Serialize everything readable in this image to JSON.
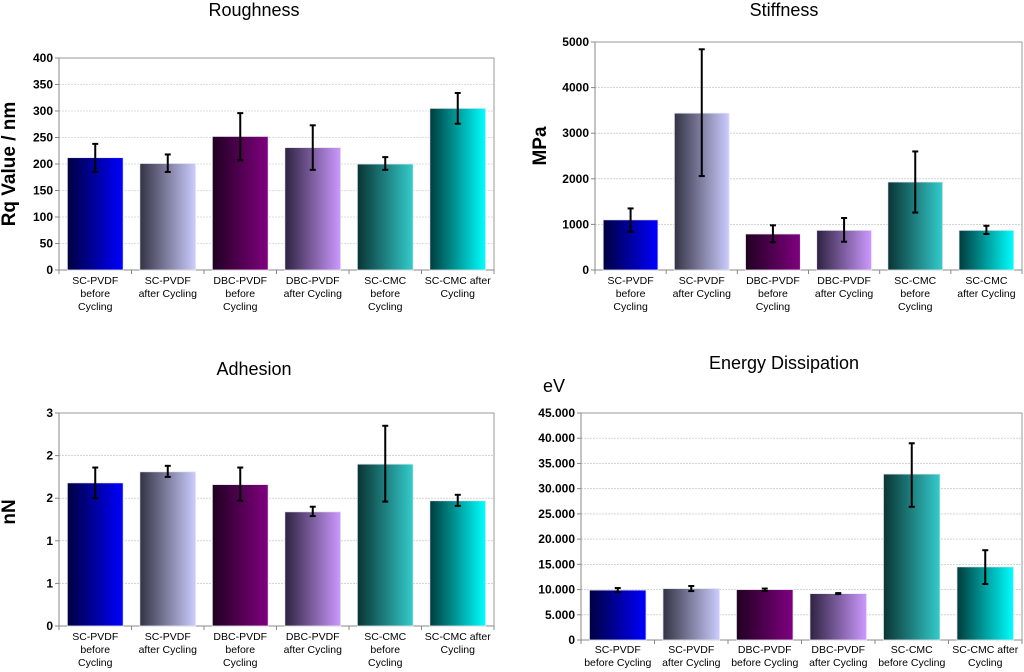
{
  "colors": [
    {
      "dark": "#000040",
      "light": "#0000FF"
    },
    {
      "dark": "#333344",
      "light": "#CCCCFF"
    },
    {
      "dark": "#200020",
      "light": "#800080"
    },
    {
      "dark": "#2E2240",
      "light": "#CC99FF"
    },
    {
      "dark": "#0A3333",
      "light": "#33CCCC"
    },
    {
      "dark": "#003C3C",
      "light": "#00FFFF"
    }
  ],
  "chart_data": [
    {
      "type": "bar",
      "title": "Roughness",
      "xlabel": "",
      "ylabel": "Rq Value / nm",
      "ylim": [
        0,
        400
      ],
      "yticks": [
        0,
        50,
        100,
        150,
        200,
        250,
        300,
        350,
        400
      ],
      "ytick_labels": [
        "0",
        "50",
        "100",
        "150",
        "200",
        "250",
        "300",
        "350",
        "400"
      ],
      "grid": true,
      "categories": [
        [
          "SC-PVDF",
          "before",
          "Cycling"
        ],
        [
          "SC-PVDF",
          "after Cycling"
        ],
        [
          "DBC-PVDF",
          "before",
          "Cycling"
        ],
        [
          "DBC-PVDF",
          "after Cycling"
        ],
        [
          "SC-CMC",
          "before",
          "Cycling"
        ],
        [
          "SC-CMC after",
          "Cycling"
        ]
      ],
      "values": [
        212,
        201,
        252,
        231,
        200,
        305
      ],
      "error_low": [
        185,
        185,
        207,
        189,
        189,
        276
      ],
      "error_high": [
        238,
        218,
        296,
        273,
        213,
        334
      ]
    },
    {
      "type": "bar",
      "title": "Stiffness",
      "xlabel": "",
      "ylabel": "MPa",
      "ylim": [
        0,
        5000
      ],
      "yticks": [
        0,
        1000,
        2000,
        3000,
        4000,
        5000
      ],
      "ytick_labels": [
        "0",
        "1000",
        "2000",
        "3000",
        "4000",
        "5000"
      ],
      "grid": true,
      "categories": [
        [
          "SC-PVDF",
          "before",
          "Cycling"
        ],
        [
          "SC-PVDF",
          "after Cycling"
        ],
        [
          "DBC-PVDF",
          "before",
          "Cycling"
        ],
        [
          "DBC-PVDF",
          "after Cycling"
        ],
        [
          "SC-CMC",
          "before",
          "Cycling"
        ],
        [
          "SC-CMC",
          "after Cycling"
        ]
      ],
      "values": [
        1100,
        3440,
        790,
        870,
        1930,
        870
      ],
      "error_low": [
        840,
        2060,
        610,
        620,
        1260,
        790
      ],
      "error_high": [
        1350,
        4840,
        980,
        1140,
        2600,
        970
      ]
    },
    {
      "type": "bar",
      "title": "Adhesion",
      "xlabel": "",
      "ylabel": "nN",
      "ylim": [
        0,
        2.5
      ],
      "yticks": [
        0,
        0.5,
        1,
        1.5,
        2,
        2.5
      ],
      "ytick_labels": [
        "0",
        "1",
        "1",
        "2",
        "2",
        "3"
      ],
      "grid": true,
      "categories": [
        [
          "SC-PVDF",
          "before",
          "Cycling"
        ],
        [
          "SC-PVDF",
          "after Cycling"
        ],
        [
          "DBC-PVDF",
          "before",
          "Cycling"
        ],
        [
          "DBC-PVDF",
          "after Cycling"
        ],
        [
          "SC-CMC",
          "before",
          "Cycling"
        ],
        [
          "SC-CMC after",
          "Cycling"
        ]
      ],
      "values": [
        1.68,
        1.81,
        1.66,
        1.34,
        1.9,
        1.47
      ],
      "error_low": [
        1.5,
        1.75,
        1.47,
        1.29,
        1.46,
        1.41
      ],
      "error_high": [
        1.86,
        1.88,
        1.86,
        1.4,
        2.35,
        1.54
      ]
    },
    {
      "type": "bar",
      "title": "Energy Dissipation",
      "xlabel": "",
      "ylabel": "eV",
      "ylim": [
        0,
        45000
      ],
      "yticks": [
        0,
        5000,
        10000,
        15000,
        20000,
        25000,
        30000,
        35000,
        40000,
        45000
      ],
      "ytick_labels": [
        "0",
        "5.000",
        "10.000",
        "15.000",
        "20.000",
        "25.000",
        "30.000",
        "35.000",
        "40.000",
        "45.000"
      ],
      "grid": true,
      "categories": [
        [
          "SC-PVDF",
          "before Cycling"
        ],
        [
          "SC-PVDF",
          "after Cycling"
        ],
        [
          "DBC-PVDF",
          "before Cycling"
        ],
        [
          "DBC-PVDF",
          "after Cycling"
        ],
        [
          "SC-CMC",
          "before Cycling"
        ],
        [
          "SC-CMC after",
          "Cycling"
        ]
      ],
      "values": [
        9900,
        10200,
        10000,
        9200,
        32900,
        14500
      ],
      "error_low": [
        9500,
        9700,
        9700,
        9100,
        26400,
        11100
      ],
      "error_high": [
        10300,
        10700,
        10200,
        9300,
        39000,
        17800
      ]
    }
  ]
}
